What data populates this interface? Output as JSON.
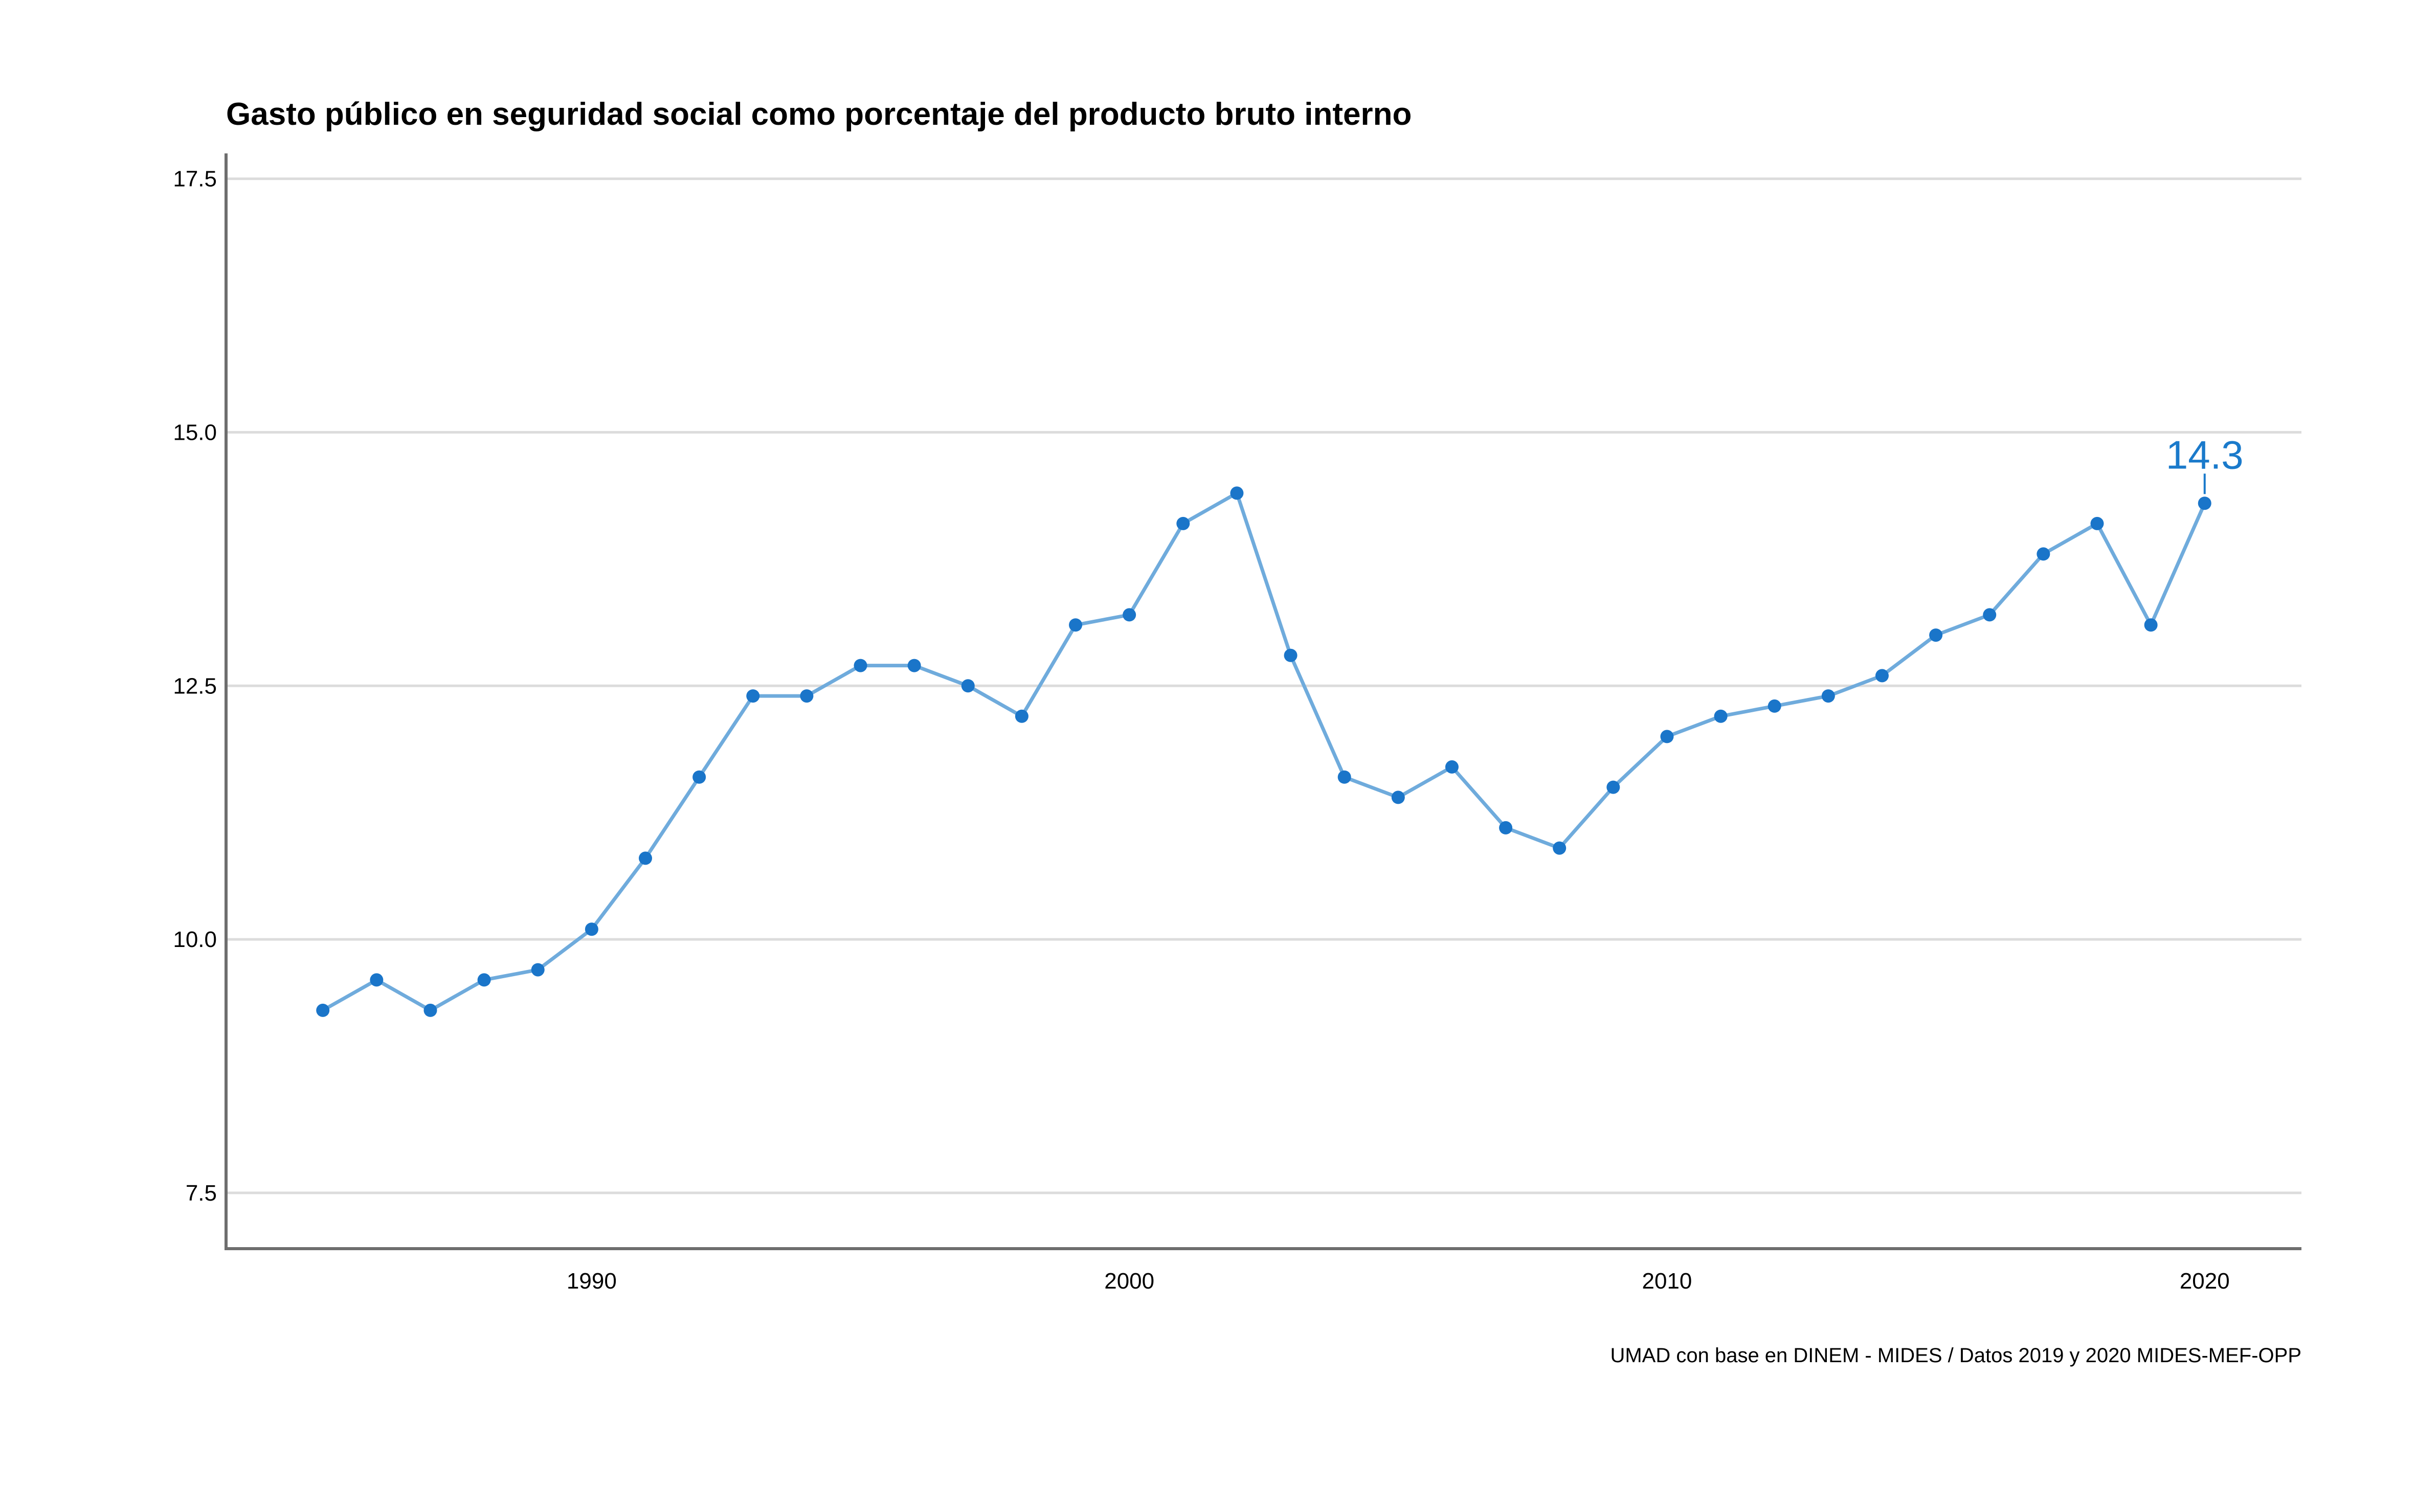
{
  "chart_data": {
    "type": "line",
    "title": "Gasto público en seguridad social como porcentaje del producto bruto interno",
    "xlabel": "",
    "ylabel": "",
    "caption": "UMAD con base en DINEM - MIDES / Datos 2019 y 2020 MIDES-MEF-OPP",
    "xlim": [
      1983.2,
      2021.8
    ],
    "ylim": [
      6.95,
      17.75
    ],
    "x_ticks": [
      "1990",
      "2000",
      "2010",
      "2020"
    ],
    "y_ticks": [
      "7.5",
      "10.0",
      "12.5",
      "15.0",
      "17.5"
    ],
    "grid": "horizontal",
    "legend": "none",
    "series": [
      {
        "x": [
          1985,
          1986,
          1987,
          1988,
          1989,
          1990,
          1991,
          1992,
          1993,
          1994,
          1995,
          1996,
          1997,
          1998,
          1999,
          2000,
          2001,
          2002,
          2003,
          2004,
          2005,
          2006,
          2007,
          2008,
          2009,
          2010,
          2011,
          2012,
          2013,
          2014,
          2015,
          2016,
          2017,
          2018,
          2019,
          2020
        ],
        "values": [
          9.3,
          9.6,
          9.3,
          9.6,
          9.7,
          10.1,
          10.8,
          11.6,
          12.4,
          12.4,
          12.7,
          12.7,
          12.5,
          12.2,
          13.1,
          13.2,
          14.1,
          14.4,
          12.8,
          11.6,
          11.4,
          11.7,
          11.1,
          10.9,
          11.5,
          12.0,
          12.2,
          12.3,
          12.4,
          12.6,
          13.0,
          13.2,
          13.8,
          14.1,
          13.1,
          14.3
        ]
      }
    ],
    "annotations": [
      {
        "x": 2020,
        "y": 14.3,
        "text": "14.3"
      }
    ],
    "colors": {
      "line": "#6fabdc",
      "point": "#1a75c9",
      "annotation": "#1a7acb",
      "grid": "#dcdcdc",
      "axis": "#6e6e6e"
    }
  }
}
